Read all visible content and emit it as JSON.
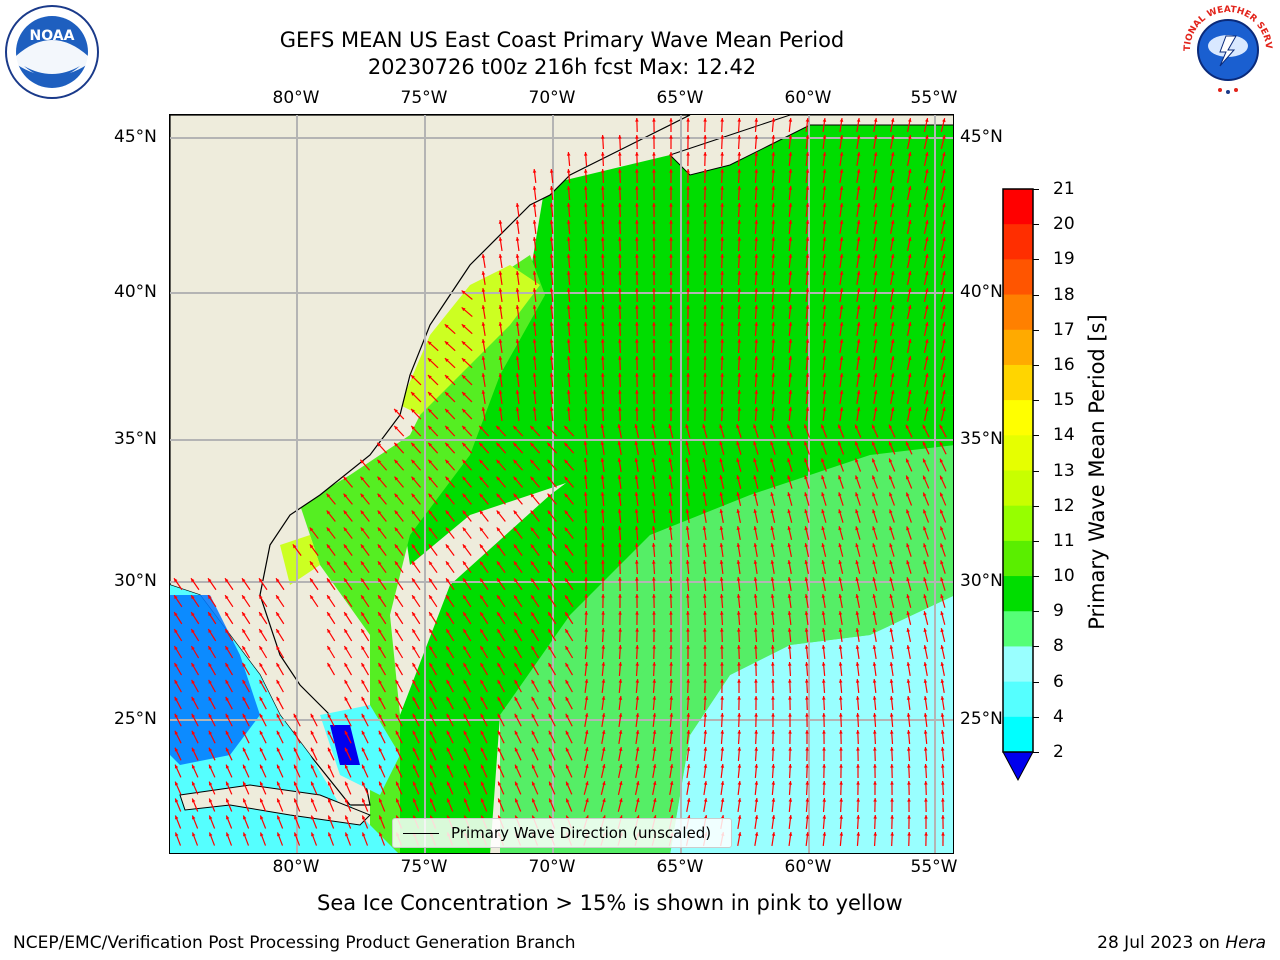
{
  "title": {
    "line1": "GEFS MEAN US East Coast Primary Wave Mean Period",
    "line2": "20230726 t00z 216h fcst   Max: 12.42"
  },
  "logos": {
    "left": "NOAA",
    "right": "NATIONAL WEATHER SERVICE"
  },
  "axes": {
    "lon_labels": [
      "80°W",
      "75°W",
      "70°W",
      "65°W",
      "60°W",
      "55°W"
    ],
    "lat_labels": [
      "45°N",
      "40°N",
      "35°N",
      "30°N",
      "25°N"
    ]
  },
  "legend": {
    "label": "Primary Wave Direction (unscaled)"
  },
  "colorbar": {
    "label": "Primary Wave Mean Period [s]",
    "ticks": [
      "21",
      "20",
      "19",
      "18",
      "17",
      "16",
      "15",
      "14",
      "13",
      "12",
      "11",
      "10",
      "9",
      "8",
      "6",
      "4",
      "2"
    ],
    "colors": [
      "#ff0000",
      "#ff2e00",
      "#ff5500",
      "#ff8000",
      "#ffaa00",
      "#ffd500",
      "#ffff00",
      "#e6ff00",
      "#c8ff00",
      "#96ff00",
      "#5aee00",
      "#00dd00",
      "#55ff77",
      "#99ffff",
      "#55ffff",
      "#00ffff",
      "#00ccff",
      "#0077ff",
      "#0000ee"
    ]
  },
  "map_colors": {
    "land": "#eeecdc",
    "band_9_10": "#55ee66",
    "band_10_11": "#00dd00",
    "band_11_12": "#55ee22",
    "band_12_13": "#ccff22",
    "band_8_9": "#99ffff",
    "band_6_8": "#55ffff",
    "band_2_4": "#0077ff",
    "arrow": "#ff0000"
  },
  "subtitle": "Sea Ice Concentration > 15% is shown in pink to yellow",
  "footer": {
    "left": "NCEP/EMC/Verification Post Processing Product Generation Branch",
    "right_date": "28 Jul 2023 on ",
    "right_host": "Hera"
  }
}
